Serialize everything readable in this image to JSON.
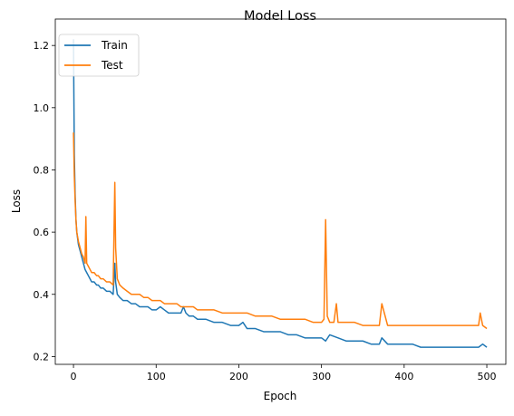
{
  "chart_data": {
    "type": "line",
    "title": "Model Loss",
    "xlabel": "Epoch",
    "ylabel": "Loss",
    "xlim": [
      -22,
      523
    ],
    "ylim": [
      0.175,
      1.285
    ],
    "xticks": [
      0,
      100,
      200,
      300,
      400,
      500
    ],
    "yticks": [
      0.2,
      0.4,
      0.6,
      0.8,
      1.0,
      1.2
    ],
    "ytick_labels": [
      "0.2",
      "0.4",
      "0.6",
      "0.8",
      "1.0",
      "1.2"
    ],
    "grid": false,
    "legend": "upper left",
    "series": [
      {
        "name": "Train",
        "color": "#1f77b4",
        "x": [
          0,
          1,
          2,
          3,
          4,
          5,
          6,
          7,
          8,
          10,
          12,
          14,
          16,
          18,
          20,
          22,
          25,
          28,
          30,
          33,
          36,
          40,
          44,
          48,
          50,
          51,
          53,
          56,
          60,
          65,
          70,
          75,
          80,
          85,
          90,
          95,
          100,
          105,
          110,
          115,
          120,
          125,
          130,
          133,
          136,
          140,
          145,
          150,
          160,
          170,
          180,
          190,
          200,
          205,
          210,
          220,
          230,
          240,
          250,
          260,
          270,
          280,
          290,
          300,
          305,
          310,
          320,
          330,
          340,
          350,
          360,
          370,
          373,
          380,
          390,
          400,
          410,
          420,
          430,
          440,
          450,
          460,
          470,
          480,
          490,
          495,
          500
        ],
        "y": [
          1.22,
          0.85,
          0.72,
          0.64,
          0.6,
          0.58,
          0.56,
          0.55,
          0.54,
          0.52,
          0.5,
          0.48,
          0.47,
          0.46,
          0.45,
          0.44,
          0.44,
          0.43,
          0.43,
          0.42,
          0.42,
          0.41,
          0.41,
          0.4,
          0.5,
          0.44,
          0.4,
          0.39,
          0.38,
          0.38,
          0.37,
          0.37,
          0.36,
          0.36,
          0.36,
          0.35,
          0.35,
          0.36,
          0.35,
          0.34,
          0.34,
          0.34,
          0.34,
          0.36,
          0.34,
          0.33,
          0.33,
          0.32,
          0.32,
          0.31,
          0.31,
          0.3,
          0.3,
          0.31,
          0.29,
          0.29,
          0.28,
          0.28,
          0.28,
          0.27,
          0.27,
          0.26,
          0.26,
          0.26,
          0.25,
          0.27,
          0.26,
          0.25,
          0.25,
          0.25,
          0.24,
          0.24,
          0.26,
          0.24,
          0.24,
          0.24,
          0.24,
          0.23,
          0.23,
          0.23,
          0.23,
          0.23,
          0.23,
          0.23,
          0.23,
          0.24,
          0.23
        ]
      },
      {
        "name": "Test",
        "color": "#ff7f0e",
        "x": [
          0,
          1,
          2,
          3,
          4,
          6,
          8,
          10,
          12,
          14,
          15,
          16,
          18,
          20,
          22,
          25,
          28,
          30,
          33,
          36,
          40,
          44,
          48,
          50,
          51,
          53,
          56,
          60,
          65,
          70,
          75,
          80,
          85,
          90,
          95,
          100,
          105,
          110,
          115,
          120,
          125,
          130,
          135,
          140,
          145,
          150,
          160,
          170,
          180,
          190,
          200,
          210,
          220,
          230,
          240,
          250,
          260,
          270,
          280,
          290,
          300,
          303,
          305,
          307,
          310,
          315,
          318,
          320,
          330,
          340,
          350,
          360,
          370,
          373,
          380,
          390,
          400,
          410,
          420,
          430,
          440,
          450,
          460,
          470,
          480,
          490,
          492,
          495,
          500
        ],
        "y": [
          0.92,
          0.78,
          0.7,
          0.64,
          0.6,
          0.57,
          0.55,
          0.53,
          0.52,
          0.5,
          0.65,
          0.5,
          0.49,
          0.48,
          0.47,
          0.47,
          0.46,
          0.46,
          0.45,
          0.45,
          0.44,
          0.44,
          0.43,
          0.76,
          0.55,
          0.45,
          0.43,
          0.42,
          0.41,
          0.4,
          0.4,
          0.4,
          0.39,
          0.39,
          0.38,
          0.38,
          0.38,
          0.37,
          0.37,
          0.37,
          0.37,
          0.36,
          0.36,
          0.36,
          0.36,
          0.35,
          0.35,
          0.35,
          0.34,
          0.34,
          0.34,
          0.34,
          0.33,
          0.33,
          0.33,
          0.32,
          0.32,
          0.32,
          0.32,
          0.31,
          0.31,
          0.32,
          0.64,
          0.33,
          0.31,
          0.31,
          0.37,
          0.31,
          0.31,
          0.31,
          0.3,
          0.3,
          0.3,
          0.37,
          0.3,
          0.3,
          0.3,
          0.3,
          0.3,
          0.3,
          0.3,
          0.3,
          0.3,
          0.3,
          0.3,
          0.3,
          0.34,
          0.3,
          0.29
        ]
      }
    ]
  }
}
